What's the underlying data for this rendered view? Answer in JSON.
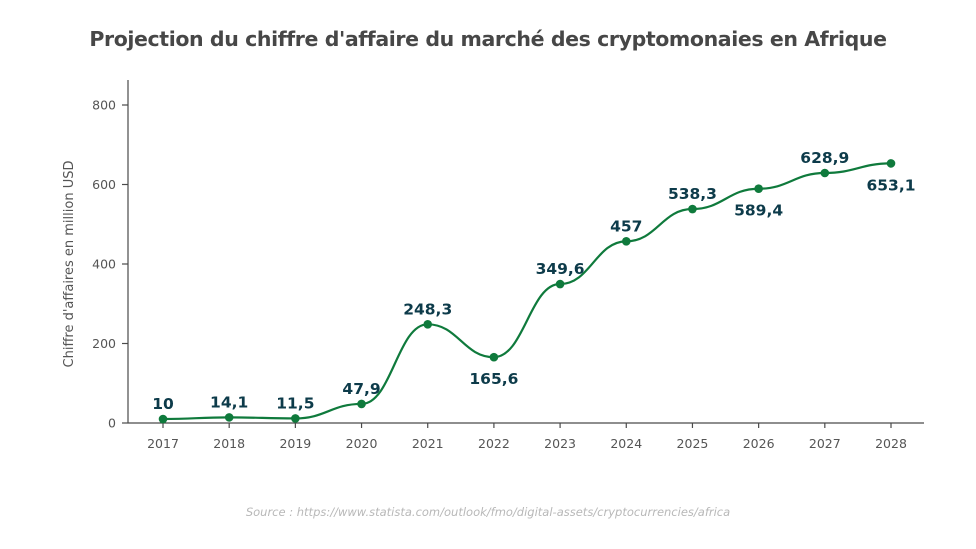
{
  "chart_data": {
    "type": "line",
    "title": "Projection du chiffre d'affaire du marché des cryptomonaies en Afrique",
    "xlabel": "",
    "ylabel": "Chiffre d'affaires en million USD",
    "categories": [
      "2017",
      "2018",
      "2019",
      "2020",
      "2021",
      "2022",
      "2023",
      "2024",
      "2025",
      "2026",
      "2027",
      "2028"
    ],
    "series": [
      {
        "name": "Chiffre d'affaires",
        "values": [
          10,
          14.1,
          11.5,
          47.9,
          248.3,
          165.6,
          349.6,
          457,
          538.3,
          589.4,
          628.9,
          653.1
        ],
        "labels": [
          "10",
          "14,1",
          "11,5",
          "47,9",
          "248,3",
          "165,6",
          "349,6",
          "457",
          "538,3",
          "589,4",
          "628,9",
          "653,1"
        ],
        "label_position": [
          "above",
          "above",
          "above",
          "above",
          "above",
          "below",
          "above",
          "above",
          "above",
          "below",
          "above",
          "below"
        ],
        "color": "#0f7a3c"
      }
    ],
    "ylim": [
      0,
      800
    ],
    "yticks": [
      0,
      200,
      400,
      600,
      800
    ],
    "grid": false,
    "legend": "none",
    "smooth": true,
    "label_color": "#0d3b4a"
  },
  "source": "Source : https://www.statista.com/outlook/fmo/digital-assets/cryptocurrencies/africa"
}
